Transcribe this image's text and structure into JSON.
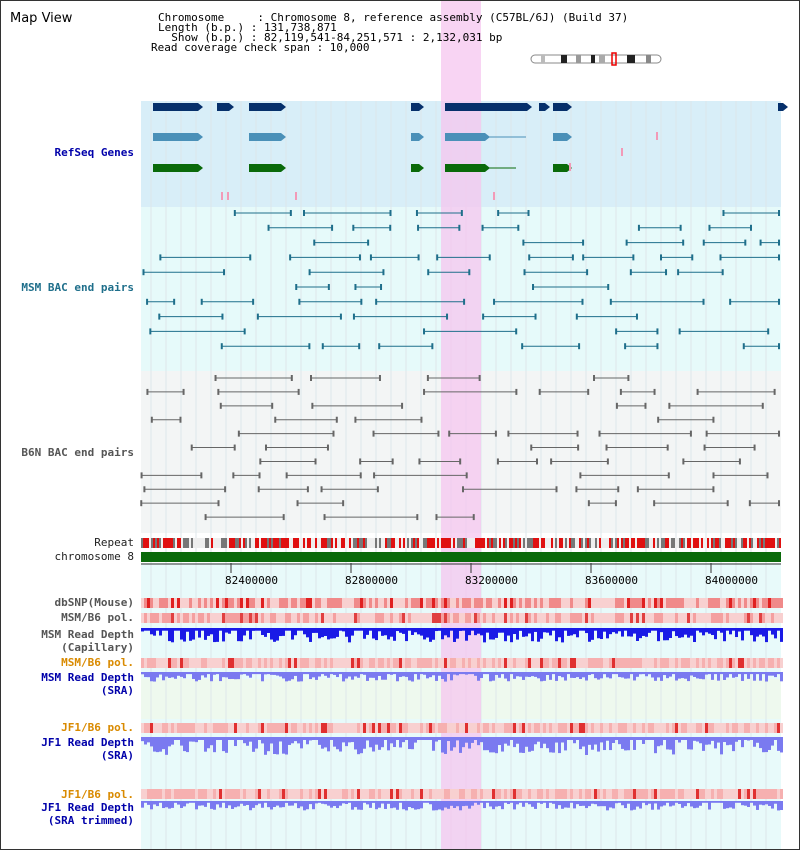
{
  "header": {
    "title": "Map View",
    "info_lines": [
      "Chromosome     : Chromosome 8, reference assembly (C57BL/6J) (Build 37)",
      "Length (b.p.) : 131,738,871",
      "  Show (b.p.) : 82,119,541-84,251,571 : 2,132,031 bp",
      "Read coverage check span : 10,000"
    ]
  },
  "tracks": {
    "refseq": "RefSeq Genes",
    "msm_bac": "MSM BAC end pairs",
    "b6n_bac": "B6N BAC end pairs",
    "repeat": "Repeat",
    "chromosome": "chromosome 8",
    "dbsnp": "dbSNP(Mouse)",
    "msm_b6_pol": "MSM/B6 pol.",
    "msm_read_depth_cap": [
      "MSM Read Depth",
      "(Capillary)"
    ],
    "msm_b6_pol2": "MSM/B6 pol.",
    "msm_read_depth_sra": [
      "MSM Read Depth",
      "(SRA)"
    ],
    "jf1_b6_pol": "JF1/B6 pol.",
    "jf1_read_depth_sra": [
      "JF1 Read Depth",
      "(SRA)"
    ],
    "jf1_b6_pol2": "JF1/B6 pol.",
    "jf1_read_depth_trim": [
      "JF1 Read Depth",
      "(SRA trimmed)"
    ]
  },
  "axis": {
    "ticks": [
      "82400000",
      "82800000",
      "83200000",
      "83600000",
      "84000000"
    ]
  },
  "colors": {
    "gene_navy": "#06306b",
    "gene_steel": "#4a90b8",
    "gene_green": "#0a6a0a",
    "refseq_bg": "#d8eef8",
    "bac_bg": "#e6fafa",
    "highlight": "#f5c6ef",
    "depth_blue": "#1a1ae6",
    "depth_light": "#7a7af0"
  }
}
